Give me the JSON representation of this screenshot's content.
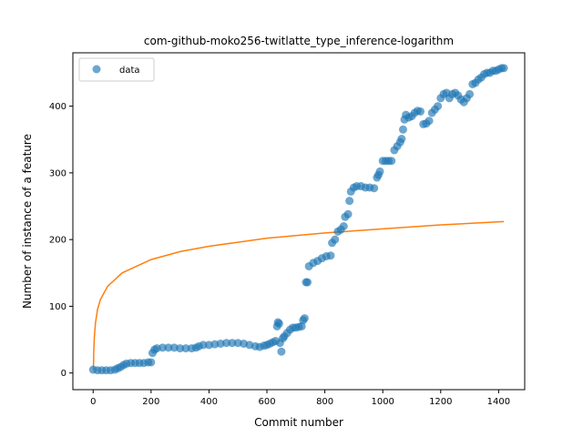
{
  "chart_data": {
    "type": "scatter",
    "title": "com-github-moko256-twitlatte_type_inference-logarithm",
    "xlabel": "Commit number",
    "ylabel": "Number of instance of a feature",
    "xlim": [
      -70,
      1490
    ],
    "ylim": [
      -25,
      480
    ],
    "xticks": [
      0,
      200,
      400,
      600,
      800,
      1000,
      1200,
      1400
    ],
    "yticks": [
      0,
      100,
      200,
      300,
      400
    ],
    "grid": false,
    "legend": {
      "position": "top-left",
      "entries": [
        "data"
      ]
    },
    "colors": {
      "data": "#1f77b4",
      "fit": "#ff7f0e"
    },
    "series": [
      {
        "name": "data",
        "kind": "scatter",
        "points": [
          [
            0,
            5
          ],
          [
            15,
            4
          ],
          [
            30,
            4
          ],
          [
            45,
            4
          ],
          [
            60,
            4
          ],
          [
            75,
            5
          ],
          [
            85,
            7
          ],
          [
            95,
            9
          ],
          [
            105,
            12
          ],
          [
            115,
            14
          ],
          [
            130,
            15
          ],
          [
            145,
            15
          ],
          [
            160,
            15
          ],
          [
            175,
            15
          ],
          [
            190,
            16
          ],
          [
            200,
            16
          ],
          [
            205,
            30
          ],
          [
            212,
            35
          ],
          [
            220,
            37
          ],
          [
            240,
            38
          ],
          [
            260,
            38
          ],
          [
            280,
            38
          ],
          [
            300,
            37
          ],
          [
            320,
            37
          ],
          [
            340,
            37
          ],
          [
            355,
            38
          ],
          [
            365,
            40
          ],
          [
            380,
            42
          ],
          [
            400,
            42
          ],
          [
            420,
            43
          ],
          [
            440,
            44
          ],
          [
            460,
            45
          ],
          [
            480,
            45
          ],
          [
            500,
            45
          ],
          [
            520,
            44
          ],
          [
            540,
            42
          ],
          [
            560,
            40
          ],
          [
            575,
            39
          ],
          [
            590,
            41
          ],
          [
            600,
            42
          ],
          [
            610,
            44
          ],
          [
            620,
            46
          ],
          [
            630,
            48
          ],
          [
            635,
            70
          ],
          [
            638,
            76
          ],
          [
            642,
            74
          ],
          [
            645,
            45
          ],
          [
            650,
            32
          ],
          [
            655,
            52
          ],
          [
            660,
            55
          ],
          [
            670,
            60
          ],
          [
            680,
            65
          ],
          [
            690,
            68
          ],
          [
            700,
            68
          ],
          [
            710,
            69
          ],
          [
            720,
            70
          ],
          [
            725,
            79
          ],
          [
            730,
            82
          ],
          [
            735,
            136
          ],
          [
            740,
            136
          ],
          [
            745,
            160
          ],
          [
            760,
            165
          ],
          [
            775,
            168
          ],
          [
            790,
            172
          ],
          [
            805,
            175
          ],
          [
            820,
            176
          ],
          [
            825,
            195
          ],
          [
            835,
            200
          ],
          [
            845,
            212
          ],
          [
            855,
            215
          ],
          [
            865,
            220
          ],
          [
            870,
            234
          ],
          [
            880,
            238
          ],
          [
            885,
            258
          ],
          [
            890,
            272
          ],
          [
            900,
            278
          ],
          [
            910,
            280
          ],
          [
            925,
            280
          ],
          [
            940,
            278
          ],
          [
            955,
            278
          ],
          [
            970,
            277
          ],
          [
            980,
            293
          ],
          [
            985,
            297
          ],
          [
            990,
            302
          ],
          [
            1000,
            318
          ],
          [
            1010,
            318
          ],
          [
            1020,
            318
          ],
          [
            1030,
            318
          ],
          [
            1040,
            334
          ],
          [
            1050,
            340
          ],
          [
            1060,
            346
          ],
          [
            1065,
            351
          ],
          [
            1070,
            365
          ],
          [
            1075,
            380
          ],
          [
            1080,
            387
          ],
          [
            1090,
            383
          ],
          [
            1100,
            385
          ],
          [
            1110,
            390
          ],
          [
            1120,
            393
          ],
          [
            1130,
            392
          ],
          [
            1140,
            373
          ],
          [
            1150,
            374
          ],
          [
            1160,
            378
          ],
          [
            1170,
            390
          ],
          [
            1180,
            395
          ],
          [
            1190,
            400
          ],
          [
            1200,
            412
          ],
          [
            1210,
            418
          ],
          [
            1220,
            420
          ],
          [
            1230,
            412
          ],
          [
            1240,
            418
          ],
          [
            1250,
            420
          ],
          [
            1260,
            416
          ],
          [
            1270,
            410
          ],
          [
            1280,
            406
          ],
          [
            1290,
            412
          ],
          [
            1300,
            418
          ],
          [
            1310,
            433
          ],
          [
            1320,
            435
          ],
          [
            1330,
            440
          ],
          [
            1340,
            443
          ],
          [
            1350,
            448
          ],
          [
            1360,
            450
          ],
          [
            1370,
            450
          ],
          [
            1380,
            453
          ],
          [
            1390,
            453
          ],
          [
            1400,
            455
          ],
          [
            1410,
            457
          ],
          [
            1418,
            457
          ]
        ]
      },
      {
        "name": "",
        "kind": "line",
        "points": [
          [
            1,
            5
          ],
          [
            2,
            30
          ],
          [
            4,
            53
          ],
          [
            8,
            75
          ],
          [
            15,
            95
          ],
          [
            25,
            110
          ],
          [
            50,
            130
          ],
          [
            100,
            150
          ],
          [
            200,
            170
          ],
          [
            300,
            182
          ],
          [
            400,
            190
          ],
          [
            600,
            202
          ],
          [
            800,
            210
          ],
          [
            1000,
            216
          ],
          [
            1200,
            222
          ],
          [
            1418,
            227
          ]
        ]
      }
    ]
  }
}
